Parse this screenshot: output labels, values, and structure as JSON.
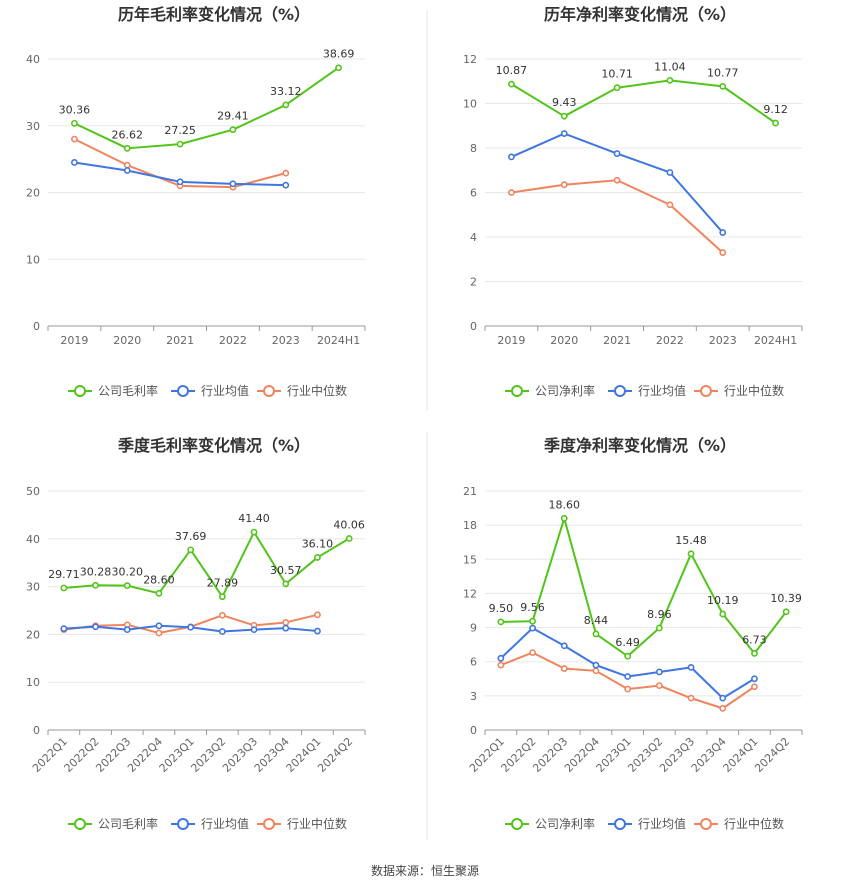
{
  "colors": {
    "company": "#52c41a",
    "industry_avg": "#3f76e0",
    "industry_median": "#f0845e",
    "grid": "#e8e8e8",
    "axis": "#999999",
    "divider": "#e5e5e5"
  },
  "chart_data": [
    {
      "type": "line",
      "title": "历年毛利率变化情况（%）",
      "categories": [
        "2019",
        "2020",
        "2021",
        "2022",
        "2023",
        "2024H1"
      ],
      "ylim": [
        0,
        40
      ],
      "yticks": [
        0,
        10,
        20,
        30,
        40
      ],
      "series": [
        {
          "name": "公司毛利率",
          "role": "company",
          "values": [
            30.36,
            26.62,
            27.25,
            29.41,
            33.12,
            38.69
          ],
          "labels": [
            "30.36",
            "26.62",
            "27.25",
            "29.41",
            "33.12",
            "38.69"
          ]
        },
        {
          "name": "行业均值",
          "role": "industry_avg",
          "values": [
            24.5,
            23.3,
            21.6,
            21.3,
            21.1,
            null
          ]
        },
        {
          "name": "行业中位数",
          "role": "industry_median",
          "values": [
            28.0,
            24.1,
            21.0,
            20.8,
            22.9,
            null
          ]
        }
      ]
    },
    {
      "type": "line",
      "title": "历年净利率变化情况（%）",
      "categories": [
        "2019",
        "2020",
        "2021",
        "2022",
        "2023",
        "2024H1"
      ],
      "ylim": [
        0,
        12
      ],
      "yticks": [
        0,
        2,
        4,
        6,
        8,
        10,
        12
      ],
      "series": [
        {
          "name": "公司净利率",
          "role": "company",
          "values": [
            10.87,
            9.43,
            10.71,
            11.04,
            10.77,
            9.12
          ],
          "labels": [
            "10.87",
            "9.43",
            "10.71",
            "11.04",
            "10.77",
            "9.12"
          ]
        },
        {
          "name": "行业均值",
          "role": "industry_avg",
          "values": [
            7.6,
            8.65,
            7.75,
            6.9,
            4.2,
            null
          ]
        },
        {
          "name": "行业中位数",
          "role": "industry_median",
          "values": [
            6.0,
            6.35,
            6.55,
            5.45,
            3.3,
            null
          ]
        }
      ]
    },
    {
      "type": "line",
      "title": "季度毛利率变化情况（%）",
      "categories": [
        "2022Q1",
        "2022Q2",
        "2022Q3",
        "2022Q4",
        "2023Q1",
        "2023Q2",
        "2023Q3",
        "2023Q4",
        "2024Q1",
        "2024Q2"
      ],
      "ylim": [
        0,
        50
      ],
      "yticks": [
        0,
        10,
        20,
        30,
        40,
        50
      ],
      "series": [
        {
          "name": "公司毛利率",
          "role": "company",
          "values": [
            29.71,
            30.28,
            30.2,
            28.6,
            37.69,
            27.89,
            41.4,
            30.57,
            36.1,
            40.06
          ],
          "labels": [
            "29.71",
            "30.28",
            "30.20",
            "28.60",
            "37.69",
            "27.89",
            "41.40",
            "30.57",
            "36.10",
            "40.06"
          ]
        },
        {
          "name": "行业均值",
          "role": "industry_avg",
          "values": [
            21.2,
            21.6,
            21.0,
            21.8,
            21.5,
            20.6,
            21.0,
            21.3,
            20.7,
            null
          ]
        },
        {
          "name": "行业中位数",
          "role": "industry_median",
          "values": [
            21.0,
            21.8,
            22.0,
            20.3,
            21.6,
            24.0,
            21.9,
            22.5,
            24.1,
            null
          ]
        }
      ]
    },
    {
      "type": "line",
      "title": "季度净利率变化情况（%）",
      "categories": [
        "2022Q1",
        "2022Q2",
        "2022Q3",
        "2022Q4",
        "2023Q1",
        "2023Q2",
        "2023Q3",
        "2023Q4",
        "2024Q1",
        "2024Q2"
      ],
      "ylim": [
        0,
        21
      ],
      "yticks": [
        0,
        3,
        6,
        9,
        12,
        15,
        18,
        21
      ],
      "series": [
        {
          "name": "公司净利率",
          "role": "company",
          "values": [
            9.5,
            9.56,
            18.6,
            8.44,
            6.49,
            8.96,
            15.48,
            10.19,
            6.73,
            10.39
          ],
          "labels": [
            "9.50",
            "9.56",
            "18.60",
            "8.44",
            "6.49",
            "8.96",
            "15.48",
            "10.19",
            "6.73",
            "10.39"
          ]
        },
        {
          "name": "行业均值",
          "role": "industry_avg",
          "values": [
            6.3,
            8.95,
            7.4,
            5.7,
            4.7,
            5.1,
            5.5,
            2.8,
            4.5,
            null
          ]
        },
        {
          "name": "行业中位数",
          "role": "industry_median",
          "values": [
            5.7,
            6.8,
            5.4,
            5.2,
            3.6,
            3.9,
            2.8,
            1.9,
            3.8,
            null
          ]
        }
      ]
    }
  ],
  "source_text": "数据来源：恒生聚源"
}
